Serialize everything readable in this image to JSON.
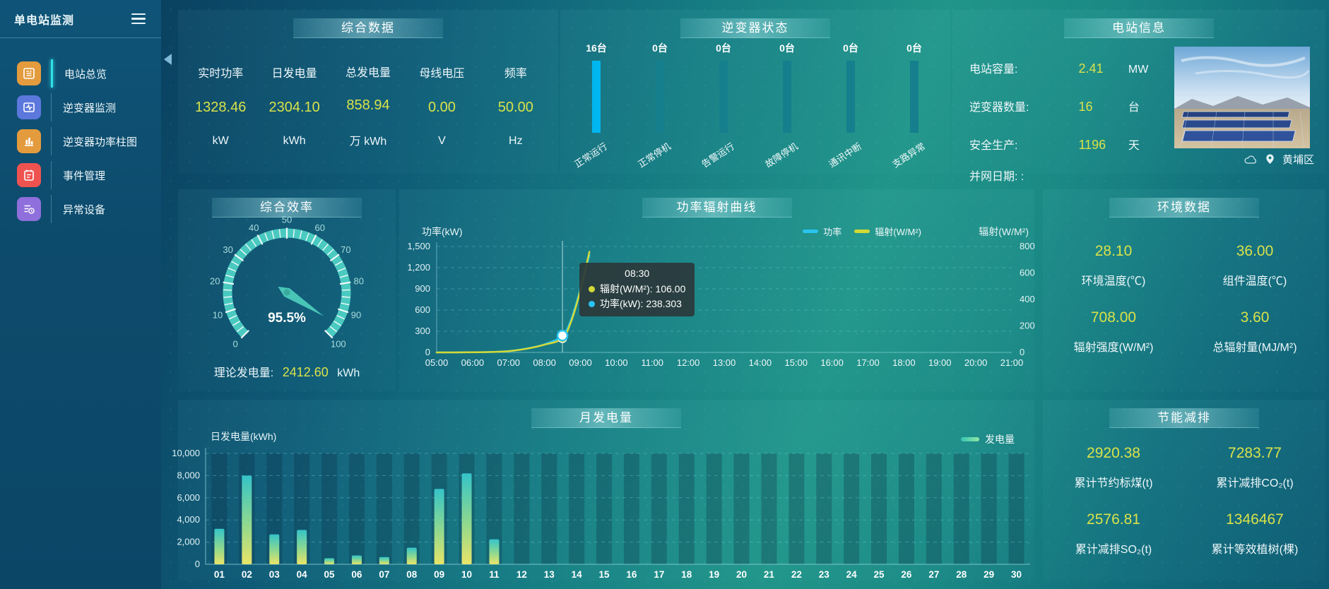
{
  "app": {
    "title": "单电站监测"
  },
  "sidebar": {
    "items": [
      {
        "label": "电站总览",
        "icon": "overview-icon",
        "color": "#e39b3d",
        "active": true
      },
      {
        "label": "逆变器监测",
        "icon": "inverter-monitor-icon",
        "color": "#5c78dd",
        "active": false
      },
      {
        "label": "逆变器功率柱图",
        "icon": "inverter-power-bars-icon",
        "color": "#e39b3d",
        "active": false
      },
      {
        "label": "事件管理",
        "icon": "event-management-icon",
        "color": "#ef5350",
        "active": false
      },
      {
        "label": "异常设备",
        "icon": "abnormal-device-icon",
        "color": "#8f6fdb",
        "active": false
      }
    ]
  },
  "summary": {
    "title": "综合数据",
    "metrics": [
      {
        "label": "实时功率",
        "value": "1328.46",
        "unit": "kW"
      },
      {
        "label": "日发电量",
        "value": "2304.10",
        "unit": "kWh"
      },
      {
        "label": "总发电量",
        "value": "858.94",
        "unit": "万 kWh"
      },
      {
        "label": "母线电压",
        "value": "0.00",
        "unit": "V"
      },
      {
        "label": "频率",
        "value": "50.00",
        "unit": "Hz"
      }
    ]
  },
  "inverter_status": {
    "title": "逆变器状态",
    "items": [
      {
        "count": "16台",
        "label": "正常运行",
        "active": true
      },
      {
        "count": "0台",
        "label": "正常停机",
        "active": false
      },
      {
        "count": "0台",
        "label": "告警运行",
        "active": false
      },
      {
        "count": "0台",
        "label": "故障停机",
        "active": false
      },
      {
        "count": "0台",
        "label": "通讯中断",
        "active": false
      },
      {
        "count": "0台",
        "label": "支路异常",
        "active": false
      }
    ]
  },
  "station_info": {
    "title": "电站信息",
    "rows": [
      {
        "label": "电站容量:",
        "value": "2.41",
        "unit": "MW"
      },
      {
        "label": "逆变器数量:",
        "value": "16",
        "unit": "台"
      },
      {
        "label": "安全生产:",
        "value": "1196",
        "unit": "天"
      },
      {
        "label": "并网日期:  :",
        "value": "",
        "unit": ""
      }
    ],
    "location": "黄埔区"
  },
  "efficiency": {
    "title": "综合效率",
    "footer_label": "理论发电量:",
    "footer_value": "2412.60",
    "footer_unit": "kWh"
  },
  "power_curve": {
    "title": "功率辐射曲线",
    "y_left_label": "功率(kW)",
    "y_right_label": "辐射(W/M²)",
    "legend": [
      {
        "name": "功率",
        "color": "#29c4f0"
      },
      {
        "name": "辐射(W/M²)",
        "color": "#d4d935"
      }
    ],
    "tooltip": {
      "time": "08:30",
      "items": [
        {
          "dot": "#d4d935",
          "text": "辐射(W/M²): 106.00"
        },
        {
          "dot": "#29c4f0",
          "text": "功率(kW): 238.303"
        }
      ]
    }
  },
  "env": {
    "title": "环境数据",
    "metrics": [
      {
        "value": "28.10",
        "label": "环境温度(℃)"
      },
      {
        "value": "36.00",
        "label": "组件温度(℃)"
      },
      {
        "value": "708.00",
        "label": "辐射强度(W/M²)"
      },
      {
        "value": "3.60",
        "label": "总辐射量(MJ/M²)"
      }
    ]
  },
  "monthly": {
    "title": "月发电量",
    "y_label": "日发电量(kWh)",
    "legend": "发电量"
  },
  "saving": {
    "title": "节能减排",
    "metrics": [
      {
        "value": "2920.38",
        "label": "累计节约标煤(t)"
      },
      {
        "value": "7283.77",
        "label": "累计减排CO₂(t)"
      },
      {
        "value": "2576.81",
        "label": "累计减排SO₂(t)"
      },
      {
        "value": "1346467",
        "label": "累计等效植树(棵)"
      }
    ]
  },
  "chart_data": [
    {
      "type": "gauge",
      "title": "综合效率",
      "min": 0,
      "max": 100,
      "value": 95.5,
      "unit": "%",
      "tick_step": 10,
      "display": "95.5%"
    },
    {
      "type": "line",
      "title": "功率辐射曲线",
      "x_ticks": [
        "05:00",
        "06:00",
        "07:00",
        "08:00",
        "09:00",
        "10:00",
        "11:00",
        "12:00",
        "13:00",
        "14:00",
        "15:00",
        "16:00",
        "17:00",
        "18:00",
        "19:00",
        "20:00",
        "21:00"
      ],
      "x_range": [
        5,
        21
      ],
      "y_left": {
        "label": "功率(kW)",
        "min": 0,
        "max": 1500,
        "ticks": [
          0,
          300,
          600,
          900,
          1200,
          1500
        ]
      },
      "y_right": {
        "label": "辐射(W/M²)",
        "min": 0,
        "max": 800,
        "ticks": [
          0,
          200,
          400,
          600,
          800
        ]
      },
      "series": [
        {
          "name": "功率",
          "axis": "left",
          "color": "#29c4f0",
          "points": [
            [
              5,
              0
            ],
            [
              5.5,
              0
            ],
            [
              6,
              2
            ],
            [
              6.5,
              6
            ],
            [
              7,
              18
            ],
            [
              7.5,
              55
            ],
            [
              8,
              115
            ],
            [
              8.5,
              238.303
            ],
            [
              8.75,
              480
            ],
            [
              9,
              900
            ],
            [
              9.25,
              1380
            ]
          ]
        },
        {
          "name": "辐射(W/M²)",
          "axis": "right",
          "color": "#d4d935",
          "points": [
            [
              5,
              0
            ],
            [
              5.5,
              0
            ],
            [
              6,
              1
            ],
            [
              6.5,
              3
            ],
            [
              7,
              9
            ],
            [
              7.5,
              28
            ],
            [
              8,
              58
            ],
            [
              8.5,
              106
            ],
            [
              8.75,
              240
            ],
            [
              9,
              470
            ],
            [
              9.25,
              760
            ]
          ]
        }
      ],
      "hover": {
        "x": 8.5,
        "left_value": 238.303,
        "right_value": 106.0
      },
      "legend_position": "top-right",
      "grid": "dashed"
    },
    {
      "type": "bar",
      "title": "月发电量",
      "categories": [
        "01",
        "02",
        "03",
        "04",
        "05",
        "06",
        "07",
        "08",
        "09",
        "10",
        "11",
        "12",
        "13",
        "14",
        "15",
        "16",
        "17",
        "18",
        "19",
        "20",
        "21",
        "22",
        "23",
        "24",
        "25",
        "26",
        "27",
        "28",
        "29",
        "30"
      ],
      "values": [
        3200,
        8000,
        2700,
        3100,
        550,
        800,
        650,
        1500,
        6800,
        8200,
        2250,
        0,
        0,
        0,
        0,
        0,
        0,
        0,
        0,
        0,
        0,
        0,
        0,
        0,
        0,
        0,
        0,
        0,
        0,
        0
      ],
      "ylabel": "日发电量(kWh)",
      "ylim": [
        0,
        10000
      ],
      "ytick_step": 2000,
      "legend": "发电量",
      "grid": "dashed"
    }
  ]
}
